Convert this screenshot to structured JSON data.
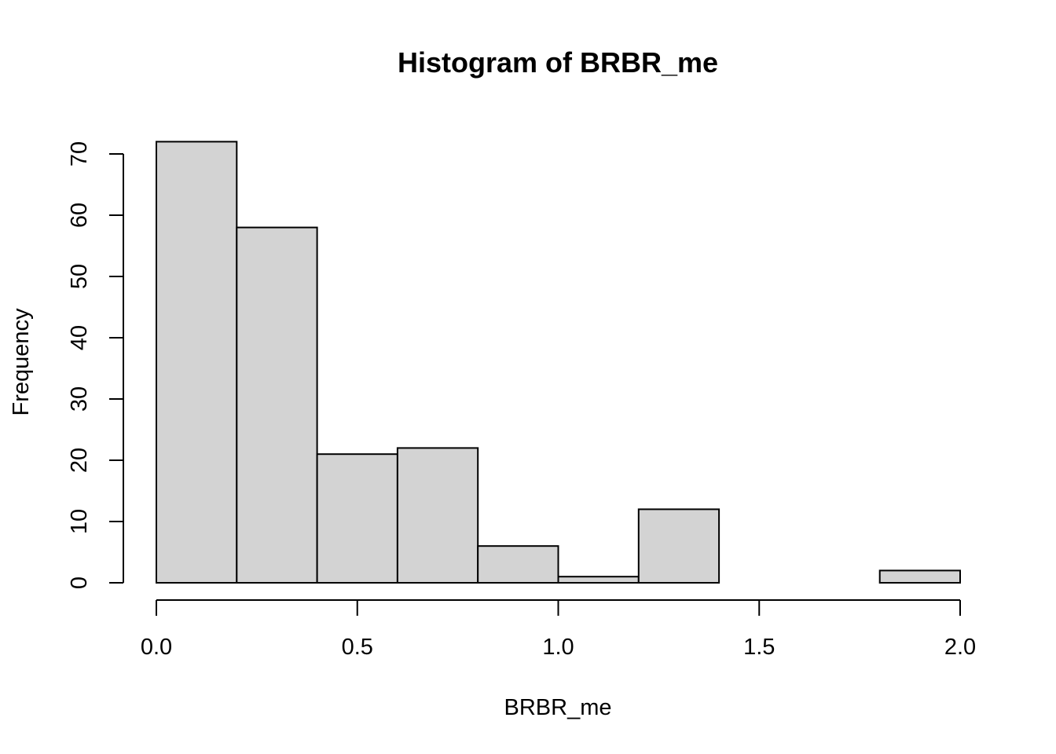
{
  "chart_data": {
    "type": "bar",
    "title": "Histogram of BRBR_me",
    "xlabel": "BRBR_me",
    "ylabel": "Frequency",
    "bins": [
      {
        "start": 0.0,
        "end": 0.2,
        "count": 72
      },
      {
        "start": 0.2,
        "end": 0.4,
        "count": 58
      },
      {
        "start": 0.4,
        "end": 0.6,
        "count": 21
      },
      {
        "start": 0.6,
        "end": 0.8,
        "count": 22
      },
      {
        "start": 0.8,
        "end": 1.0,
        "count": 6
      },
      {
        "start": 1.0,
        "end": 1.2,
        "count": 1
      },
      {
        "start": 1.2,
        "end": 1.4,
        "count": 12
      },
      {
        "start": 1.4,
        "end": 1.6,
        "count": 0
      },
      {
        "start": 1.6,
        "end": 1.8,
        "count": 0
      },
      {
        "start": 1.8,
        "end": 2.0,
        "count": 2
      }
    ],
    "xlim": [
      0,
      2
    ],
    "ylim": [
      0,
      72
    ],
    "x_ticks": [
      "0.0",
      "0.5",
      "1.0",
      "1.5",
      "2.0"
    ],
    "x_tick_values": [
      0,
      0.5,
      1.0,
      1.5,
      2.0
    ],
    "y_ticks": [
      "0",
      "10",
      "20",
      "30",
      "40",
      "50",
      "60",
      "70"
    ],
    "y_tick_values": [
      0,
      10,
      20,
      30,
      40,
      50,
      60,
      70
    ],
    "grid": false,
    "colors": {
      "bar_fill": "#d3d3d3",
      "bar_stroke": "#000000"
    }
  }
}
